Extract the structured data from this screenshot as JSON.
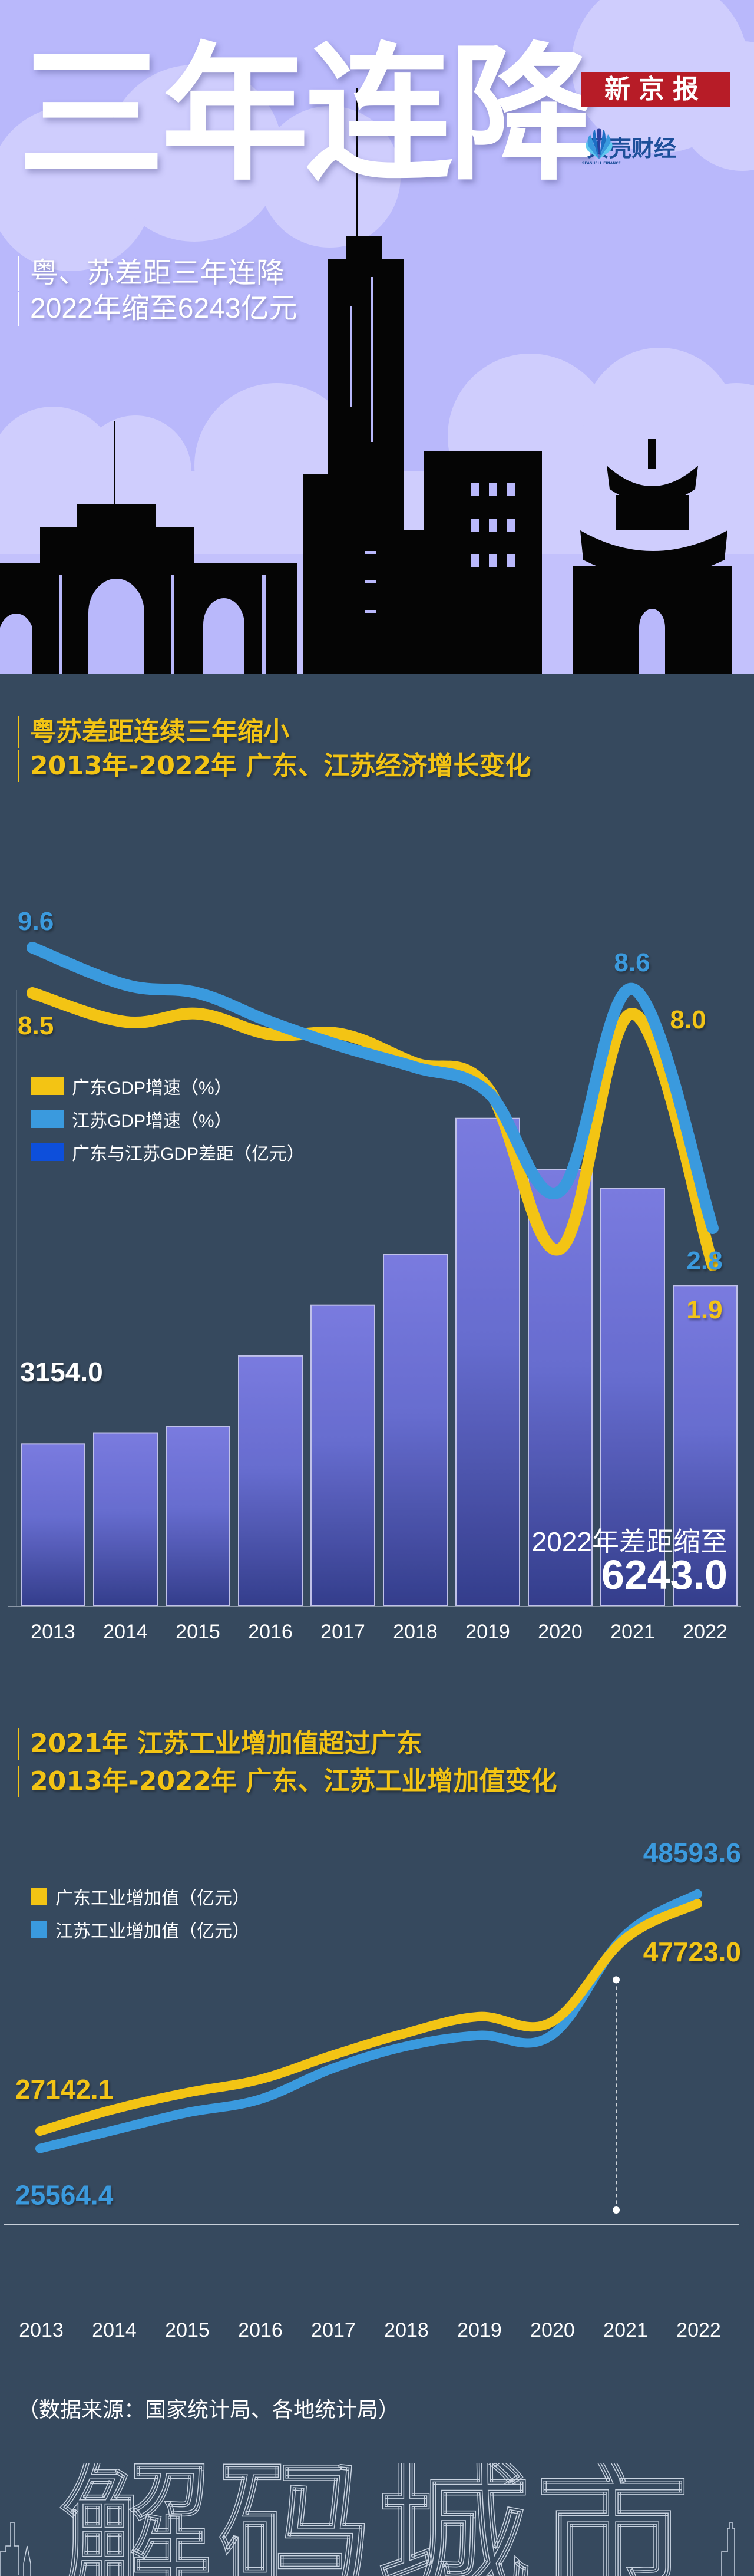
{
  "hero": {
    "title": "三年连降",
    "subtitle_lines": [
      "粤、苏差距三年连降",
      "2022年缩至6243亿元"
    ],
    "logo_newspaper": "新京报",
    "logo_finance": "贝壳财经",
    "logo_finance_en": "SEASHELL FINANCE",
    "bg_color": "#b9b8fb"
  },
  "section1": {
    "title_lines": [
      "粤苏差距连续三年缩小",
      "2013年-2022年 广东、江苏经济增长变化"
    ],
    "legend": [
      {
        "label": "广东GDP增速（%）",
        "color": "#f3c414"
      },
      {
        "label": "江苏GDP增速（%）",
        "color": "#3a9ade"
      },
      {
        "label": "广东与江苏GDP差距（亿元）",
        "color": "#0d4fdb"
      }
    ],
    "gap_caption": "2022年差距缩至",
    "gap_caption_value": "6243.0"
  },
  "section2": {
    "title_lines": [
      "2021年 江苏工业增加值超过广东",
      "2013年-2022年 广东、江苏工业增加值变化"
    ],
    "legend": [
      {
        "label": "广东工业增加值（亿元）",
        "color": "#f3c414"
      },
      {
        "label": "江苏工业增加值（亿元）",
        "color": "#3a9ade"
      }
    ]
  },
  "footer": {
    "source": "（数据来源：国家统计局、各地统计局）",
    "brand": "解码城市"
  },
  "chart_data": [
    {
      "type": "bar",
      "title": "2013年-2022年 广东、江苏经济增长变化",
      "categories": [
        "2013",
        "2014",
        "2015",
        "2016",
        "2017",
        "2018",
        "2019",
        "2020",
        "2021",
        "2022"
      ],
      "series": [
        {
          "name": "广东GDP增速（%）",
          "type": "line",
          "color": "#f3c414",
          "values": [
            8.5,
            7.8,
            8.0,
            7.5,
            7.5,
            6.8,
            6.2,
            2.3,
            8.0,
            1.9
          ],
          "labels": {
            "0": "8.5",
            "8": "8.0",
            "9": "1.9"
          }
        },
        {
          "name": "江苏GDP增速（%）",
          "type": "line",
          "color": "#3a9ade",
          "values": [
            9.6,
            8.7,
            8.5,
            7.8,
            7.2,
            6.7,
            6.1,
            3.7,
            8.6,
            2.8
          ],
          "labels": {
            "0": "9.6",
            "8": "8.6",
            "9": "2.8"
          }
        },
        {
          "name": "广东与江苏GDP差距（亿元）",
          "type": "bar",
          "color": "#0d4fdb",
          "values": [
            3154.0,
            3370,
            3500,
            4870,
            5860,
            6850,
            9500,
            8500,
            8140,
            6243.0
          ],
          "labels": {
            "0": "3154.0"
          }
        }
      ],
      "line_ylim": [
        0,
        11
      ],
      "bar_ylim": [
        0,
        12000
      ],
      "xlabel": "",
      "ylabel": ""
    },
    {
      "type": "line",
      "title": "2013年-2022年 广东、江苏工业增加值变化",
      "categories": [
        "2013",
        "2014",
        "2015",
        "2016",
        "2017",
        "2018",
        "2019",
        "2020",
        "2021",
        "2022"
      ],
      "series": [
        {
          "name": "广东工业增加值（亿元）",
          "color": "#f3c414",
          "values": [
            27142.1,
            29100,
            30600,
            31800,
            34000,
            36000,
            37500,
            37000,
            44500,
            47723.0
          ],
          "labels": {
            "0": "27142.1",
            "9": "47723.0"
          }
        },
        {
          "name": "江苏工业增加值（亿元）",
          "color": "#3a9ade",
          "values": [
            25564.4,
            27200,
            28800,
            30000,
            32800,
            34800,
            35800,
            35800,
            44800,
            48593.6
          ],
          "labels": {
            "0": "25564.4",
            "9": "48593.6"
          }
        }
      ],
      "annotation": {
        "category": "2021",
        "note": "江苏超过广东"
      },
      "ylim": [
        20000,
        52000
      ],
      "xlabel": "",
      "ylabel": ""
    }
  ]
}
